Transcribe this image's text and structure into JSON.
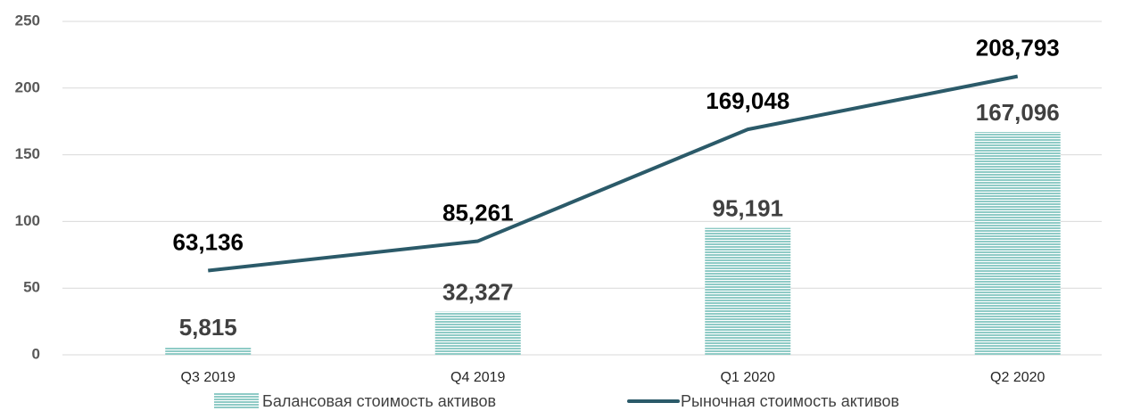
{
  "chart_data": {
    "type": "bar_line",
    "categories": [
      "Q3 2019",
      "Q4 2019",
      "Q1 2020",
      "Q2 2020"
    ],
    "series": [
      {
        "name": "Балансовая стоимость активов",
        "type": "bar",
        "color": "#8fcbc6",
        "values": [
          5.815,
          32.327,
          95.191,
          167.096
        ],
        "value_labels": [
          "5,815",
          "32,327",
          "95,191",
          "167,096"
        ]
      },
      {
        "name": "Рыночная стоимость активов",
        "type": "line",
        "color": "#2b5a69",
        "values": [
          63.136,
          85.261,
          169.048,
          208.793
        ],
        "value_labels": [
          "63,136",
          "85,261",
          "169,048",
          "208,793"
        ]
      }
    ],
    "ylim": [
      0,
      250
    ],
    "yticks": [
      0,
      50,
      100,
      150,
      200,
      250
    ],
    "grid": true,
    "legend": "bottom"
  }
}
